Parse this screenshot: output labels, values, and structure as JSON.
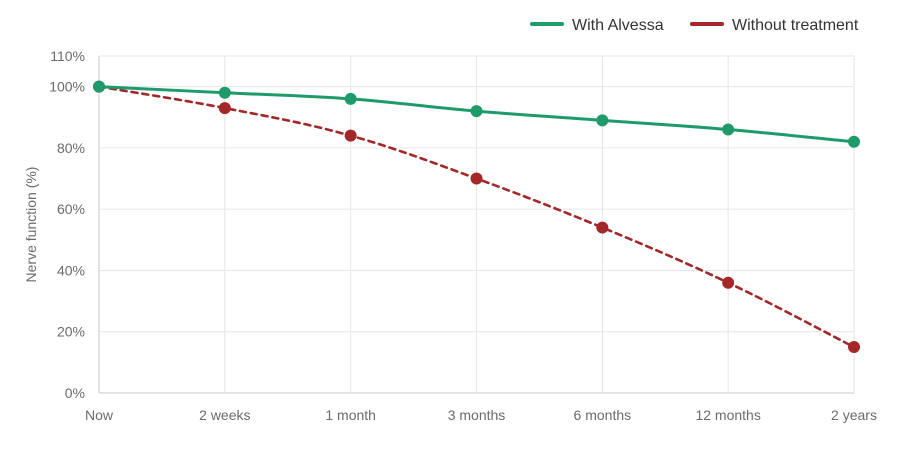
{
  "chart_data": {
    "type": "line",
    "title": "",
    "xlabel": "",
    "ylabel": "Nerve function (%)",
    "categories": [
      "Now",
      "2 weeks",
      "1 month",
      "3 months",
      "6 months",
      "12 months",
      "2 years"
    ],
    "yticks": [
      0,
      20,
      40,
      60,
      80,
      100,
      110
    ],
    "ytick_suffix": "%",
    "ylim": [
      0,
      110
    ],
    "grid": true,
    "legend_position": "top-right",
    "series": [
      {
        "name": "With Alvessa",
        "color": "#1f9a6b",
        "dashed": false,
        "values": [
          100,
          98,
          96,
          92,
          89,
          86,
          82
        ]
      },
      {
        "name": "Without treatment",
        "color": "#a3282a",
        "dashed": true,
        "values": [
          100,
          93,
          84,
          70,
          54,
          36,
          15
        ]
      }
    ]
  }
}
